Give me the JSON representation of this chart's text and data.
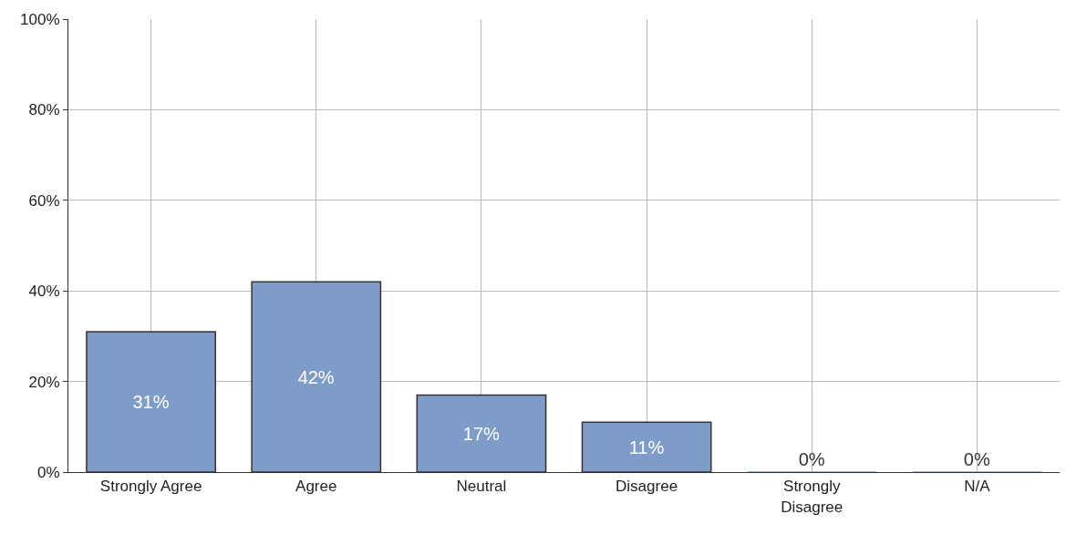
{
  "chart_data": {
    "type": "bar",
    "categories": [
      "Strongly Agree",
      "Agree",
      "Neutral",
      "Disagree",
      "Strongly Disagree",
      "N/A"
    ],
    "values": [
      31,
      42,
      17,
      11,
      0,
      0
    ],
    "value_labels": [
      "31%",
      "42%",
      "17%",
      "11%",
      "0%",
      "0%"
    ],
    "color": "#7f9cc9",
    "ylim": [
      0,
      100
    ],
    "yticks": [
      {
        "value": 0,
        "label": "0%"
      },
      {
        "value": 20,
        "label": "20%"
      },
      {
        "value": 40,
        "label": "40%"
      },
      {
        "value": 60,
        "label": "60%"
      },
      {
        "value": 80,
        "label": "80%"
      },
      {
        "value": 100,
        "label": "100%"
      }
    ],
    "grid": true
  }
}
